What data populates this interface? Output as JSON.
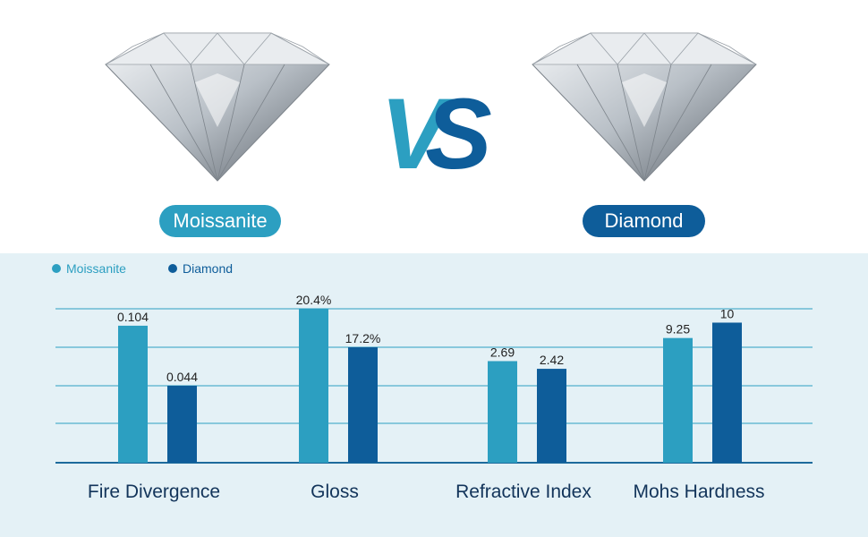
{
  "labels": {
    "left_stone": "Moissanite",
    "right_stone": "Diamond",
    "vs": "VS"
  },
  "colors": {
    "moissanite": "#2c9fc1",
    "diamond": "#0e5d9a",
    "panel_bg": "#e4f1f6",
    "category_text": "#12345a"
  },
  "icons": {
    "left_gem": "diamond-gem-icon",
    "right_gem": "diamond-gem-icon"
  },
  "chart_data": {
    "type": "bar",
    "categories": [
      "Fire Divergence",
      "Gloss",
      "Refractive Index",
      "Mohs Hardness"
    ],
    "series": [
      {
        "name": "Moissanite",
        "values": [
          0.104,
          20.4,
          2.69,
          9.25
        ],
        "labels": [
          "0.104",
          "20.4%",
          "2.69",
          "9.25"
        ]
      },
      {
        "name": "Diamond",
        "values": [
          0.044,
          17.2,
          2.42,
          10
        ],
        "labels": [
          "0.044",
          "17.2%",
          "2.42",
          "10"
        ]
      }
    ],
    "bar_height_fraction": {
      "Moissanite": [
        0.89,
        1.0,
        0.66,
        0.81
      ],
      "Diamond": [
        0.5,
        0.75,
        0.61,
        0.91
      ]
    },
    "grid": true,
    "legend": "top-left"
  }
}
